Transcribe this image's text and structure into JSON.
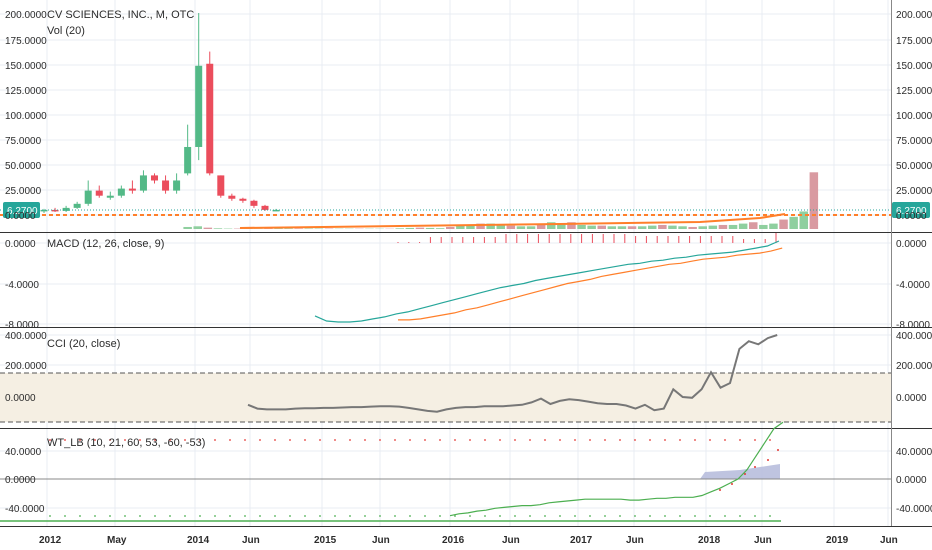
{
  "symbol_title": "CV SCIENCES, INC., M, OTC",
  "price_badge": "6.2700",
  "colors": {
    "up": "#53b987",
    "down": "#eb4d5c",
    "vol_up": "#8fcf9f",
    "vol_down": "#d99aa1",
    "macd": "#26a69a",
    "signal": "#ff7f2a",
    "cci": "#777777",
    "band": "#f5efe3",
    "wt1": "#4caf50",
    "wt_dots": "#e53935",
    "wt_area": "#b8bedd",
    "grid": "#e8ecf3"
  },
  "panes": {
    "price": {
      "vol_label": "Vol (20)",
      "ticks": [
        "200.0000",
        "175.0000",
        "150.0000",
        "125.0000",
        "100.0000",
        "75.0000",
        "50.0000",
        "25.0000",
        "0.0000"
      ]
    },
    "macd": {
      "label": "MACD (12, 26, close, 9)",
      "ticks": [
        "0.0000",
        "-4.0000",
        "-8.0000"
      ]
    },
    "cci": {
      "label": "CCI (20, close)",
      "ticks": [
        "400.0000",
        "200.0000",
        "0.0000"
      ]
    },
    "wt": {
      "label": "WT_LB (10, 21, 60, 53, -60, -53)",
      "ticks": [
        "40.0000",
        "0.0000",
        "-40.0000"
      ]
    }
  },
  "x_labels": [
    "2012",
    "May",
    "2014",
    "Jun",
    "2015",
    "Jun",
    "2016",
    "Jun",
    "2017",
    "Jun",
    "2018",
    "Jun",
    "2019",
    "Jun"
  ],
  "chart_data": [
    {
      "type": "candlestick",
      "title": "CV SCIENCES, INC., M, OTC",
      "ylim": [
        0,
        200
      ],
      "candles": [
        {
          "o": 5,
          "h": 7,
          "l": 3,
          "c": 6
        },
        {
          "o": 6,
          "h": 8,
          "l": 4,
          "c": 5
        },
        {
          "o": 5,
          "h": 10,
          "l": 4,
          "c": 8
        },
        {
          "o": 8,
          "h": 14,
          "l": 7,
          "c": 12
        },
        {
          "o": 12,
          "h": 35,
          "l": 10,
          "c": 25
        },
        {
          "o": 25,
          "h": 30,
          "l": 18,
          "c": 20
        },
        {
          "o": 18,
          "h": 24,
          "l": 16,
          "c": 20
        },
        {
          "o": 20,
          "h": 30,
          "l": 18,
          "c": 27
        },
        {
          "o": 27,
          "h": 35,
          "l": 22,
          "c": 25
        },
        {
          "o": 25,
          "h": 45,
          "l": 23,
          "c": 40
        },
        {
          "o": 40,
          "h": 42,
          "l": 32,
          "c": 35
        },
        {
          "o": 35,
          "h": 40,
          "l": 22,
          "c": 25
        },
        {
          "o": 25,
          "h": 42,
          "l": 22,
          "c": 35
        },
        {
          "o": 42,
          "h": 90,
          "l": 40,
          "c": 68
        },
        {
          "o": 68,
          "h": 200,
          "l": 55,
          "c": 148
        },
        {
          "o": 150,
          "h": 162,
          "l": 40,
          "c": 42
        },
        {
          "o": 40,
          "h": 40,
          "l": 18,
          "c": 20
        },
        {
          "o": 20,
          "h": 22,
          "l": 15,
          "c": 17
        },
        {
          "o": 17,
          "h": 18,
          "l": 13,
          "c": 15
        },
        {
          "o": 15,
          "h": 16,
          "l": 8,
          "c": 10
        },
        {
          "o": 10,
          "h": 11,
          "l": 5,
          "c": 6
        },
        {
          "o": 6,
          "h": 7,
          "l": 5,
          "c": 6
        }
      ],
      "volume": [
        0,
        0,
        0,
        0,
        0,
        0,
        0,
        0,
        0,
        0,
        0,
        0,
        0,
        0,
        1.5,
        2,
        1,
        0.5,
        0.3,
        0.3,
        0.3,
        0.2,
        0.3,
        0.3,
        0.3,
        0.3,
        0.3,
        0.3,
        0.3,
        0.2,
        0.2,
        0.2,
        0.2,
        0.2,
        0.2,
        0.5,
        0.8,
        1,
        0.8,
        0.6,
        1.5,
        2.5,
        2.5,
        4,
        4,
        3,
        2.5,
        2,
        2,
        3,
        5,
        4,
        5,
        3,
        2.5,
        2.5,
        2,
        2,
        2,
        2,
        2.5,
        3,
        2.5,
        2,
        1.5,
        2,
        2.5,
        3,
        3,
        4,
        5,
        3,
        4,
        7,
        9,
        13,
        42
      ],
      "price": 6.27
    },
    {
      "type": "line",
      "title": "MACD (12, 26, close, 9)",
      "ylim": [
        -8,
        1
      ],
      "series": [
        {
          "values": [
            -7.2,
            -7.7,
            -7.8,
            -7.8,
            -7.7,
            -7.5,
            -7.3,
            -7,
            -6.8,
            -6.5,
            -6.2,
            -5.9,
            -5.6,
            -5.3,
            -5,
            -4.7,
            -4.4,
            -4.2,
            -4,
            -3.7,
            -3.5,
            -3.3,
            -3.1,
            -2.9,
            -2.7,
            -2.5,
            -2.3,
            -2.1,
            -2,
            -1.8,
            -1.7,
            -1.5,
            -1.4,
            -1.2,
            -1.1,
            -1,
            -0.9,
            -0.7,
            -0.5,
            -0.3,
            0.2
          ]
        },
        {
          "values": [
            -7.6,
            -7.6,
            -7.5,
            -7.3,
            -7.1,
            -6.9,
            -6.6,
            -6.4,
            -6.1,
            -5.8,
            -5.5,
            -5.2,
            -4.9,
            -4.6,
            -4.3,
            -4,
            -3.8,
            -3.6,
            -3.3,
            -3.1,
            -2.9,
            -2.7,
            -2.5,
            -2.3,
            -2.1,
            -2,
            -1.8,
            -1.6,
            -1.5,
            -1.4,
            -1.2,
            -1.1,
            -1,
            -0.8,
            -0.5
          ]
        }
      ]
    },
    {
      "type": "line",
      "title": "CCI (20, close)",
      "ylim": [
        -150,
        400
      ],
      "bands": [
        100,
        -100
      ],
      "values": [
        -50,
        -75,
        -80,
        -80,
        -80,
        -75,
        -72,
        -72,
        -70,
        -70,
        -68,
        -65,
        -65,
        -62,
        -60,
        -60,
        -62,
        -70,
        -80,
        -90,
        -95,
        -80,
        -70,
        -65,
        -65,
        -60,
        -60,
        -60,
        -55,
        -50,
        -35,
        -10,
        -45,
        -25,
        -15,
        -20,
        -30,
        -40,
        -45,
        -45,
        -55,
        -75,
        -50,
        -85,
        -75,
        50,
        0,
        -5,
        50,
        160,
        60,
        90,
        310,
        360,
        340,
        380,
        400
      ]
    },
    {
      "type": "line",
      "title": "WT_LB (10, 21, 60, 53, -60, -53)",
      "ylim": [
        -60,
        60
      ],
      "levels": [
        60,
        53,
        -60,
        -53
      ],
      "values": [
        -40,
        -38,
        -37,
        -35,
        -34,
        -32,
        -31,
        -30,
        -29,
        -29,
        -28,
        -26,
        -25,
        -24,
        -23,
        -22,
        -22,
        -22,
        -22,
        -22,
        -23,
        -23,
        -22,
        -21,
        -21,
        -20,
        -20,
        -20,
        -18,
        -14,
        -10,
        -5,
        0,
        10,
        25,
        40,
        55,
        62
      ]
    }
  ]
}
